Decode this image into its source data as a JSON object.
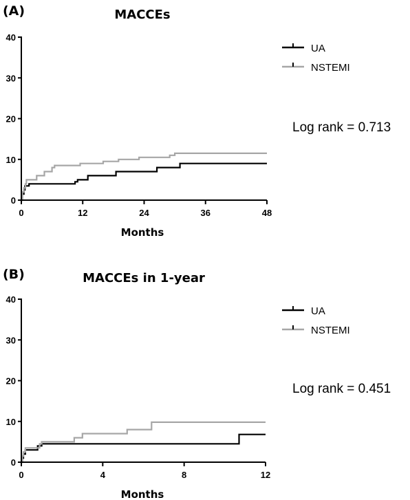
{
  "chart_data": [
    {
      "type": "line",
      "panel_label": "(A)",
      "title": "MACCEs",
      "xlabel": "Months",
      "ylabel": "",
      "xlim": [
        0,
        48
      ],
      "ylim": [
        0,
        40
      ],
      "xticks": [
        0,
        12,
        24,
        36,
        48
      ],
      "yticks": [
        0,
        10,
        20,
        30,
        40
      ],
      "grid": false,
      "legend_position": "top-right",
      "annotation": "Log rank = 0.713",
      "series": [
        {
          "name": "UA",
          "color": "#000000",
          "step": true,
          "points": [
            [
              0,
              0
            ],
            [
              0.2,
              1.5
            ],
            [
              0.5,
              2.5
            ],
            [
              0.7,
              3.5
            ],
            [
              1.5,
              4
            ],
            [
              10,
              4
            ],
            [
              10.5,
              4.5
            ],
            [
              11,
              5
            ],
            [
              12.5,
              5
            ],
            [
              13,
              6
            ],
            [
              18,
              6
            ],
            [
              18.5,
              7
            ],
            [
              26,
              7
            ],
            [
              26.5,
              8
            ],
            [
              30.5,
              8
            ],
            [
              31,
              9
            ],
            [
              48,
              9
            ]
          ]
        },
        {
          "name": "NSTEMI",
          "color": "#a6a6a6",
          "step": true,
          "points": [
            [
              0,
              0
            ],
            [
              0.2,
              2
            ],
            [
              0.5,
              3
            ],
            [
              0.8,
              4
            ],
            [
              1,
              5
            ],
            [
              2.5,
              5
            ],
            [
              3,
              6
            ],
            [
              4,
              6
            ],
            [
              4.5,
              7
            ],
            [
              5.5,
              7
            ],
            [
              6,
              8
            ],
            [
              6.5,
              8.5
            ],
            [
              11,
              8.5
            ],
            [
              11.5,
              9
            ],
            [
              15,
              9
            ],
            [
              16,
              9.5
            ],
            [
              19,
              10
            ],
            [
              22,
              10
            ],
            [
              23,
              10.5
            ],
            [
              28,
              10.5
            ],
            [
              29,
              11
            ],
            [
              30,
              11.5
            ],
            [
              48,
              11.5
            ]
          ]
        }
      ]
    },
    {
      "type": "line",
      "panel_label": "(B)",
      "title": "MACCEs in 1-year",
      "xlabel": "Months",
      "ylabel": "",
      "xlim": [
        0,
        12
      ],
      "ylim": [
        0,
        40
      ],
      "xticks": [
        0,
        4,
        8,
        12
      ],
      "yticks": [
        0,
        10,
        20,
        30,
        40
      ],
      "grid": false,
      "legend_position": "top-right",
      "annotation": "Log rank = 0.451",
      "series": [
        {
          "name": "UA",
          "color": "#000000",
          "step": true,
          "points": [
            [
              0,
              0
            ],
            [
              0.05,
              1
            ],
            [
              0.1,
              2
            ],
            [
              0.2,
              3
            ],
            [
              0.7,
              3
            ],
            [
              0.8,
              4
            ],
            [
              1,
              4.5
            ],
            [
              10.6,
              4.5
            ],
            [
              10.7,
              6.8
            ],
            [
              12,
              6.8
            ]
          ]
        },
        {
          "name": "NSTEMI",
          "color": "#a6a6a6",
          "step": true,
          "points": [
            [
              0,
              0
            ],
            [
              0.05,
              1.5
            ],
            [
              0.1,
              2.5
            ],
            [
              0.2,
              3.5
            ],
            [
              0.8,
              3.5
            ],
            [
              0.9,
              4.5
            ],
            [
              1,
              5
            ],
            [
              2.5,
              5
            ],
            [
              2.6,
              6
            ],
            [
              2.8,
              6
            ],
            [
              3,
              7
            ],
            [
              5,
              7
            ],
            [
              5.2,
              8
            ],
            [
              6.2,
              8
            ],
            [
              6.4,
              9.8
            ],
            [
              12,
              9.8
            ]
          ]
        }
      ]
    }
  ]
}
